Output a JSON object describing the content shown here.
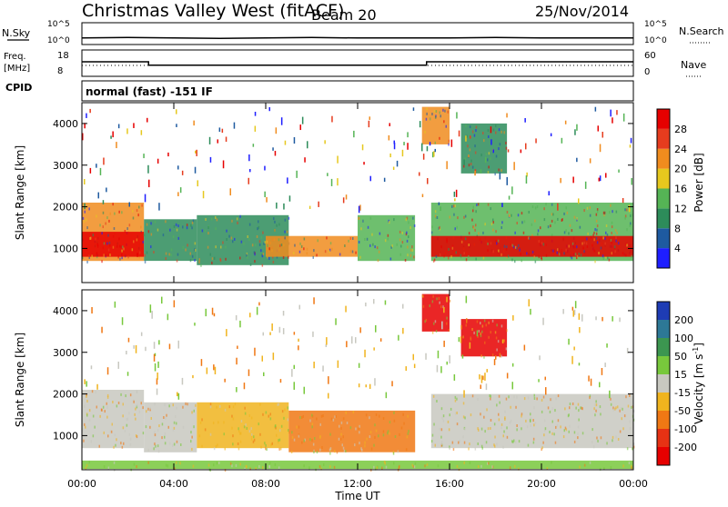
{
  "header": {
    "title": "Christmas Valley West (fitACF)",
    "beam": "Beam 20",
    "date": "25/Nov/2014"
  },
  "top_panels": {
    "nsky_label": "N.Sky",
    "nsky_ticks": [
      "10^5",
      "10^0"
    ],
    "nsearch_label": "N.Search",
    "nsearch_ticks": [
      "10^5",
      "10^0"
    ],
    "freq_label": "Freq.",
    "freq_unit": "[MHz]",
    "freq_ticks": [
      "18",
      "8"
    ],
    "nave_label": "Nave",
    "nave_ticks": [
      "60",
      "0"
    ],
    "cpid_label": "CPID",
    "cpid_text": "normal (fast) -151 IF"
  },
  "axes": {
    "xlabel": "Time UT",
    "ylabel": "Slant Range [km]",
    "xticks": [
      "00:00",
      "04:00",
      "08:00",
      "12:00",
      "16:00",
      "20:00",
      "00:00"
    ],
    "yticks": [
      "1000",
      "2000",
      "3000",
      "4000"
    ]
  },
  "power_colorbar": {
    "label": "Power [dB]",
    "ticks": [
      "4",
      "8",
      "12",
      "16",
      "20",
      "24",
      "28"
    ],
    "colors": [
      "#1e1eff",
      "#1e5aa0",
      "#2d8c5a",
      "#55b455",
      "#e6c81e",
      "#f08c1e",
      "#e63c1e",
      "#e60000"
    ]
  },
  "velocity_colorbar": {
    "label": "Velocity [m s",
    "label_sup": "-1",
    "label_end": "]",
    "ticks": [
      "200",
      "100",
      "50",
      "15",
      "-15",
      "-50",
      "-100",
      "-200"
    ],
    "colors": [
      "#1e3cb4",
      "#2d7896",
      "#3c9650",
      "#78c83c",
      "#c8c8c0",
      "#f0b41e",
      "#f07814",
      "#e63214",
      "#e60000"
    ]
  },
  "chart_data": [
    {
      "type": "line",
      "title": "N.Sky / N.Search",
      "x": [
        0,
        2,
        4,
        6,
        8,
        10,
        12,
        14,
        16,
        18,
        20,
        22,
        24
      ],
      "series": [
        {
          "name": "N.Sky",
          "values": [
            1.5,
            1.6,
            1.5,
            1.4,
            1.5,
            1.6,
            1.5,
            1.5,
            1.5,
            1.6,
            1.5,
            1.5,
            1.5
          ]
        }
      ],
      "xlim": [
        0,
        24
      ]
    },
    {
      "type": "line",
      "title": "Frequency",
      "x": [
        0,
        2.9,
        2.9,
        15.0,
        15.0,
        24
      ],
      "series": [
        {
          "name": "Freq.",
          "values": [
            13.5,
            13.5,
            12.2,
            12.2,
            13.5,
            13.5
          ]
        }
      ],
      "ylim": [
        8,
        18
      ],
      "xlim": [
        0,
        24
      ]
    },
    {
      "type": "heatmap",
      "title": "Power",
      "xlabel": "Time UT",
      "ylabel": "Slant Range [km]",
      "xlim": [
        0,
        24
      ],
      "ylim": [
        180,
        4500
      ],
      "colorbar": "Power [dB]",
      "regions": [
        {
          "t0": 0.0,
          "t1": 2.7,
          "r0": 700,
          "r1": 2100,
          "value": 22
        },
        {
          "t0": 0.0,
          "t1": 2.7,
          "r0": 800,
          "r1": 1400,
          "value": 30
        },
        {
          "t0": 2.7,
          "t1": 5.0,
          "r0": 700,
          "r1": 1700,
          "value": 8
        },
        {
          "t0": 5.0,
          "t1": 9.0,
          "r0": 600,
          "r1": 1800,
          "value": 10
        },
        {
          "t0": 8.0,
          "t1": 12.0,
          "r0": 800,
          "r1": 1300,
          "value": 20
        },
        {
          "t0": 12.0,
          "t1": 14.5,
          "r0": 700,
          "r1": 1800,
          "value": 14
        },
        {
          "t0": 15.2,
          "t1": 24.0,
          "r0": 700,
          "r1": 2100,
          "value": 12
        },
        {
          "t0": 15.2,
          "t1": 24.0,
          "r0": 800,
          "r1": 1300,
          "value": 30
        },
        {
          "t0": 14.8,
          "t1": 16.0,
          "r0": 3500,
          "r1": 4400,
          "value": 22
        },
        {
          "t0": 16.5,
          "t1": 18.5,
          "r0": 2800,
          "r1": 4000,
          "value": 8
        }
      ]
    },
    {
      "type": "heatmap",
      "title": "Velocity",
      "xlabel": "Time UT",
      "ylabel": "Slant Range [km]",
      "xlim": [
        0,
        24
      ],
      "ylim": [
        180,
        4500
      ],
      "colorbar": "Velocity [m s-1]",
      "regions": [
        {
          "t0": 0.0,
          "t1": 2.7,
          "r0": 700,
          "r1": 2100,
          "value": 0
        },
        {
          "t0": 2.7,
          "t1": 5.0,
          "r0": 600,
          "r1": 1800,
          "value": 0
        },
        {
          "t0": 5.0,
          "t1": 9.0,
          "r0": 700,
          "r1": 1800,
          "value": -40
        },
        {
          "t0": 9.0,
          "t1": 14.5,
          "r0": 600,
          "r1": 1600,
          "value": -60
        },
        {
          "t0": 15.2,
          "t1": 24.0,
          "r0": 700,
          "r1": 2000,
          "value": 0
        },
        {
          "t0": 14.8,
          "t1": 16.0,
          "r0": 3500,
          "r1": 4400,
          "value": -250
        },
        {
          "t0": 16.5,
          "t1": 18.5,
          "r0": 2900,
          "r1": 3800,
          "value": -250
        },
        {
          "t0": 0.0,
          "t1": 24.0,
          "r0": 200,
          "r1": 400,
          "value": 30
        }
      ]
    }
  ]
}
